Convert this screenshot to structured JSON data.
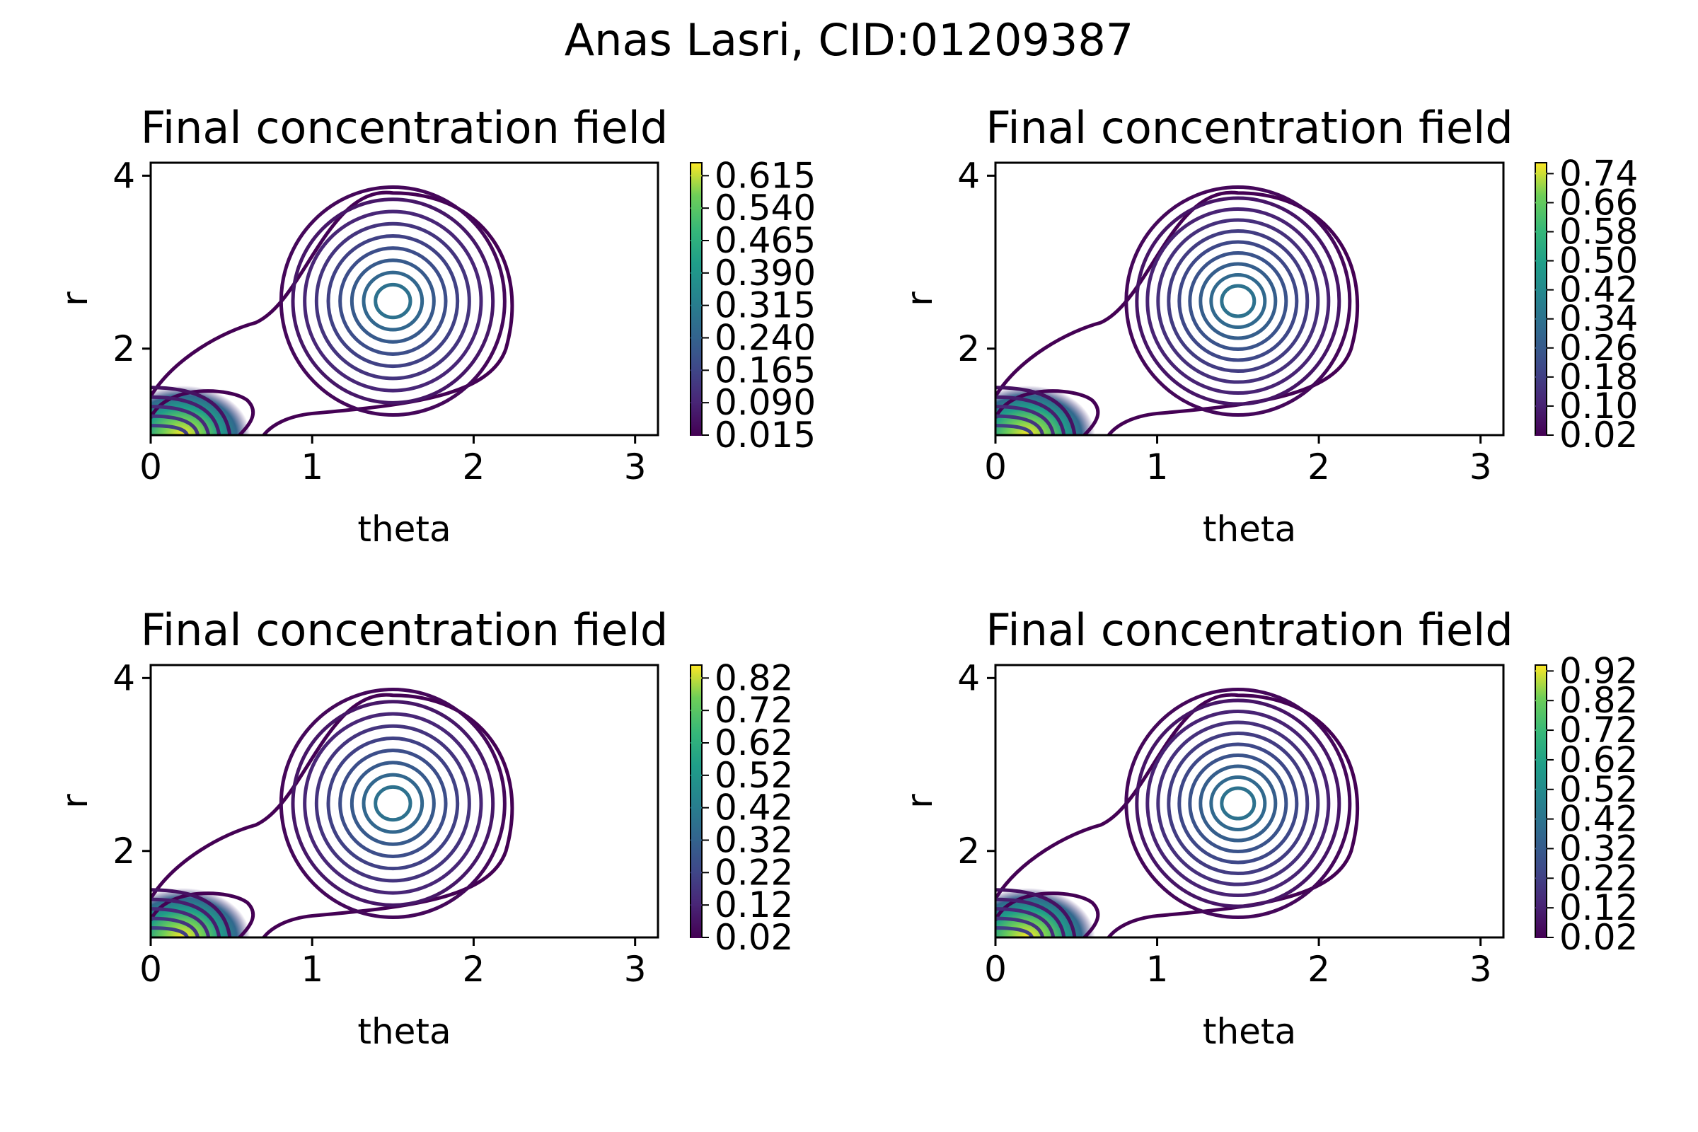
{
  "figure": {
    "suptitle": "Anas Lasri, CID:01209387"
  },
  "chart_data": [
    {
      "type": "contour",
      "title": "Final concentration field",
      "xlabel": "theta",
      "ylabel": "r",
      "xlim": [
        0,
        3.1416
      ],
      "ylim": [
        1,
        4.15
      ],
      "xticks": [
        "0",
        "1",
        "2",
        "3"
      ],
      "yticks": [
        "2",
        "4"
      ],
      "colormap": "viridis",
      "colorbar_levels": [
        0.015,
        0.09,
        0.165,
        0.24,
        0.315,
        0.39,
        0.465,
        0.54,
        0.615
      ],
      "colorbar_labels": [
        "0.015",
        "0.090",
        "0.165",
        "0.240",
        "0.315",
        "0.390",
        "0.465",
        "0.540",
        "0.615"
      ],
      "colorbar_range": [
        0.015,
        0.645
      ]
    },
    {
      "type": "contour",
      "title": "Final concentration field",
      "xlabel": "theta",
      "ylabel": "r",
      "xlim": [
        0,
        3.1416
      ],
      "ylim": [
        1,
        4.15
      ],
      "xticks": [
        "0",
        "1",
        "2",
        "3"
      ],
      "yticks": [
        "2",
        "4"
      ],
      "colormap": "viridis",
      "colorbar_levels": [
        0.02,
        0.1,
        0.18,
        0.26,
        0.34,
        0.42,
        0.5,
        0.58,
        0.66,
        0.74
      ],
      "colorbar_labels": [
        "0.02",
        "0.10",
        "0.18",
        "0.26",
        "0.34",
        "0.42",
        "0.50",
        "0.58",
        "0.66",
        "0.74"
      ],
      "colorbar_range": [
        0.02,
        0.77
      ]
    },
    {
      "type": "contour",
      "title": "Final concentration field",
      "xlabel": "theta",
      "ylabel": "r",
      "xlim": [
        0,
        3.1416
      ],
      "ylim": [
        1,
        4.15
      ],
      "xticks": [
        "0",
        "1",
        "2",
        "3"
      ],
      "yticks": [
        "2",
        "4"
      ],
      "colormap": "viridis",
      "colorbar_levels": [
        0.02,
        0.12,
        0.22,
        0.32,
        0.42,
        0.52,
        0.62,
        0.72,
        0.82
      ],
      "colorbar_labels": [
        "0.02",
        "0.12",
        "0.22",
        "0.32",
        "0.42",
        "0.52",
        "0.62",
        "0.72",
        "0.82"
      ],
      "colorbar_range": [
        0.02,
        0.86
      ]
    },
    {
      "type": "contour",
      "title": "Final concentration field",
      "xlabel": "theta",
      "ylabel": "r",
      "xlim": [
        0,
        3.1416
      ],
      "ylim": [
        1,
        4.15
      ],
      "xticks": [
        "0",
        "1",
        "2",
        "3"
      ],
      "yticks": [
        "2",
        "4"
      ],
      "colormap": "viridis",
      "colorbar_levels": [
        0.02,
        0.12,
        0.22,
        0.32,
        0.42,
        0.52,
        0.62,
        0.72,
        0.82,
        0.92
      ],
      "colorbar_labels": [
        "0.02",
        "0.12",
        "0.22",
        "0.32",
        "0.42",
        "0.52",
        "0.62",
        "0.72",
        "0.82",
        "0.92"
      ],
      "colorbar_range": [
        0.02,
        0.94
      ]
    }
  ]
}
